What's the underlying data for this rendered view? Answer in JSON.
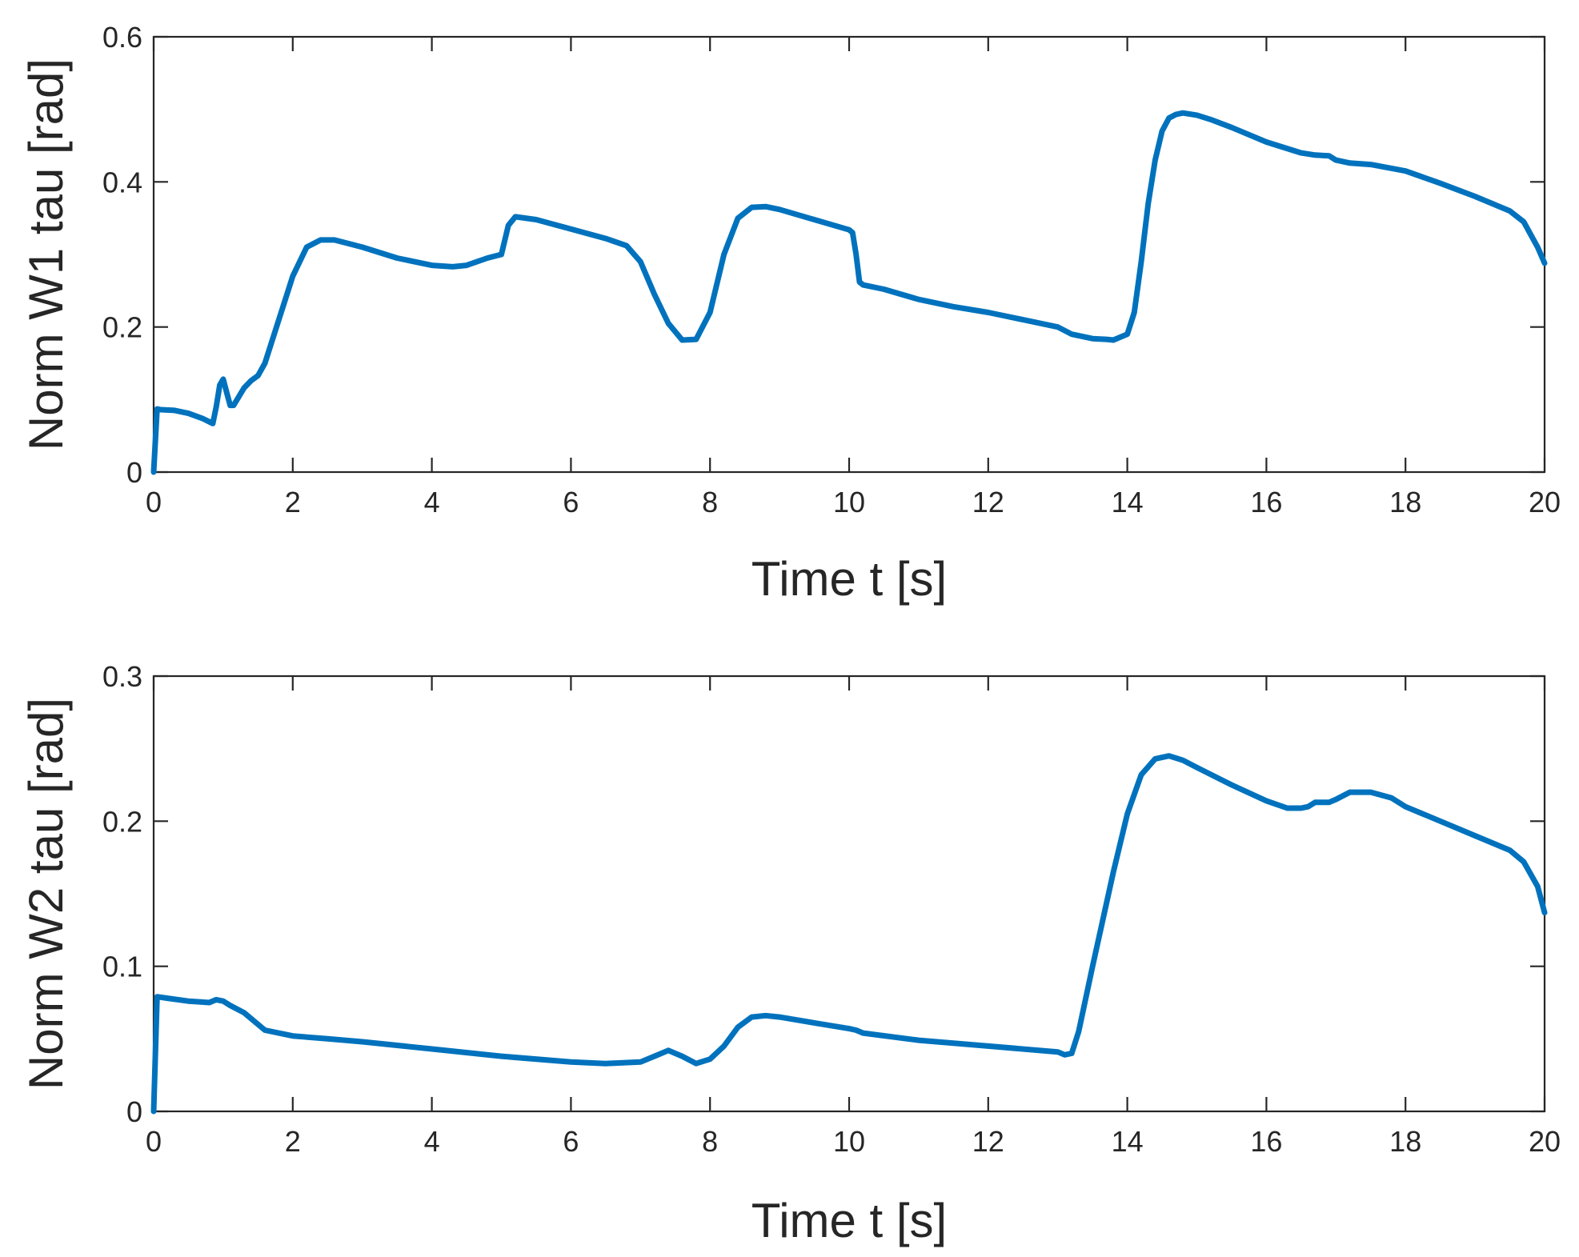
{
  "chart_data": [
    {
      "type": "line",
      "xlabel": "Time t [s]",
      "ylabel": "Norm W1 tau [rad]",
      "xlim": [
        0,
        20
      ],
      "ylim": [
        0,
        0.6
      ],
      "xticks": [
        0,
        2,
        4,
        6,
        8,
        10,
        12,
        14,
        16,
        18,
        20
      ],
      "yticks": [
        0,
        0.2,
        0.4,
        0.6
      ],
      "xtick_labels": [
        "0",
        "2",
        "4",
        "6",
        "8",
        "10",
        "12",
        "14",
        "16",
        "18",
        "20"
      ],
      "ytick_labels": [
        "0",
        "0.2",
        "0.4",
        "0.6"
      ],
      "grid": false,
      "color": "#0072BD",
      "series": [
        {
          "x": [
            0,
            0.05,
            0.1,
            0.3,
            0.5,
            0.7,
            0.85,
            0.9,
            0.95,
            1.0,
            1.05,
            1.1,
            1.15,
            1.2,
            1.3,
            1.4,
            1.5,
            1.6,
            1.8,
            2.0,
            2.2,
            2.4,
            2.6,
            3.0,
            3.5,
            4.0,
            4.3,
            4.5,
            4.8,
            5.0,
            5.1,
            5.2,
            5.5,
            6.0,
            6.5,
            6.8,
            7.0,
            7.2,
            7.4,
            7.6,
            7.8,
            8.0,
            8.2,
            8.4,
            8.6,
            8.8,
            9.0,
            9.5,
            10.0,
            10.05,
            10.1,
            10.15,
            10.2,
            10.5,
            11.0,
            11.5,
            12.0,
            12.5,
            13.0,
            13.1,
            13.2,
            13.5,
            13.7,
            13.8,
            14.0,
            14.1,
            14.2,
            14.3,
            14.4,
            14.5,
            14.6,
            14.7,
            14.8,
            15.0,
            15.2,
            15.5,
            16.0,
            16.5,
            16.7,
            16.9,
            17.0,
            17.2,
            17.5,
            18.0,
            18.5,
            19.0,
            19.5,
            19.7,
            19.9,
            20.0
          ],
          "y": [
            0.0,
            0.087,
            0.086,
            0.085,
            0.081,
            0.074,
            0.067,
            0.09,
            0.12,
            0.128,
            0.11,
            0.092,
            0.092,
            0.1,
            0.116,
            0.126,
            0.133,
            0.15,
            0.21,
            0.27,
            0.31,
            0.32,
            0.32,
            0.31,
            0.295,
            0.285,
            0.283,
            0.285,
            0.295,
            0.3,
            0.34,
            0.352,
            0.348,
            0.335,
            0.322,
            0.312,
            0.29,
            0.245,
            0.205,
            0.182,
            0.183,
            0.22,
            0.3,
            0.35,
            0.365,
            0.366,
            0.362,
            0.348,
            0.334,
            0.33,
            0.3,
            0.262,
            0.258,
            0.252,
            0.238,
            0.228,
            0.22,
            0.21,
            0.2,
            0.195,
            0.19,
            0.184,
            0.183,
            0.182,
            0.19,
            0.22,
            0.29,
            0.37,
            0.43,
            0.47,
            0.488,
            0.493,
            0.495,
            0.492,
            0.486,
            0.475,
            0.455,
            0.44,
            0.437,
            0.436,
            0.43,
            0.426,
            0.424,
            0.415,
            0.398,
            0.38,
            0.36,
            0.345,
            0.31,
            0.288
          ]
        }
      ]
    },
    {
      "type": "line",
      "xlabel": "Time t [s]",
      "ylabel": "Norm W2 tau [rad]",
      "xlim": [
        0,
        20
      ],
      "ylim": [
        0,
        0.3
      ],
      "xticks": [
        0,
        2,
        4,
        6,
        8,
        10,
        12,
        14,
        16,
        18,
        20
      ],
      "yticks": [
        0,
        0.1,
        0.2,
        0.3
      ],
      "xtick_labels": [
        "0",
        "2",
        "4",
        "6",
        "8",
        "10",
        "12",
        "14",
        "16",
        "18",
        "20"
      ],
      "ytick_labels": [
        "0",
        "0.1",
        "0.2",
        "0.3"
      ],
      "grid": false,
      "color": "#0072BD",
      "series": [
        {
          "x": [
            0,
            0.05,
            0.2,
            0.5,
            0.8,
            0.9,
            1.0,
            1.1,
            1.3,
            1.6,
            2.0,
            2.5,
            3.0,
            4.0,
            5.0,
            6.0,
            6.5,
            7.0,
            7.2,
            7.4,
            7.6,
            7.8,
            8.0,
            8.2,
            8.4,
            8.6,
            8.8,
            9.0,
            9.5,
            10.0,
            10.1,
            10.2,
            11.0,
            12.0,
            13.0,
            13.1,
            13.2,
            13.3,
            13.5,
            13.8,
            14.0,
            14.2,
            14.4,
            14.6,
            14.8,
            15.0,
            15.5,
            16.0,
            16.3,
            16.5,
            16.6,
            16.7,
            16.9,
            17.0,
            17.2,
            17.5,
            17.8,
            18.0,
            18.5,
            19.0,
            19.5,
            19.7,
            19.9,
            20.0
          ],
          "y": [
            0.0,
            0.079,
            0.078,
            0.076,
            0.075,
            0.077,
            0.076,
            0.073,
            0.068,
            0.056,
            0.052,
            0.05,
            0.048,
            0.043,
            0.038,
            0.034,
            0.033,
            0.034,
            0.038,
            0.042,
            0.038,
            0.033,
            0.036,
            0.045,
            0.058,
            0.065,
            0.066,
            0.065,
            0.061,
            0.057,
            0.056,
            0.054,
            0.049,
            0.045,
            0.041,
            0.039,
            0.04,
            0.055,
            0.1,
            0.165,
            0.205,
            0.232,
            0.243,
            0.245,
            0.242,
            0.237,
            0.225,
            0.214,
            0.209,
            0.209,
            0.21,
            0.213,
            0.213,
            0.215,
            0.22,
            0.22,
            0.216,
            0.21,
            0.2,
            0.19,
            0.18,
            0.172,
            0.155,
            0.137
          ]
        }
      ]
    }
  ]
}
